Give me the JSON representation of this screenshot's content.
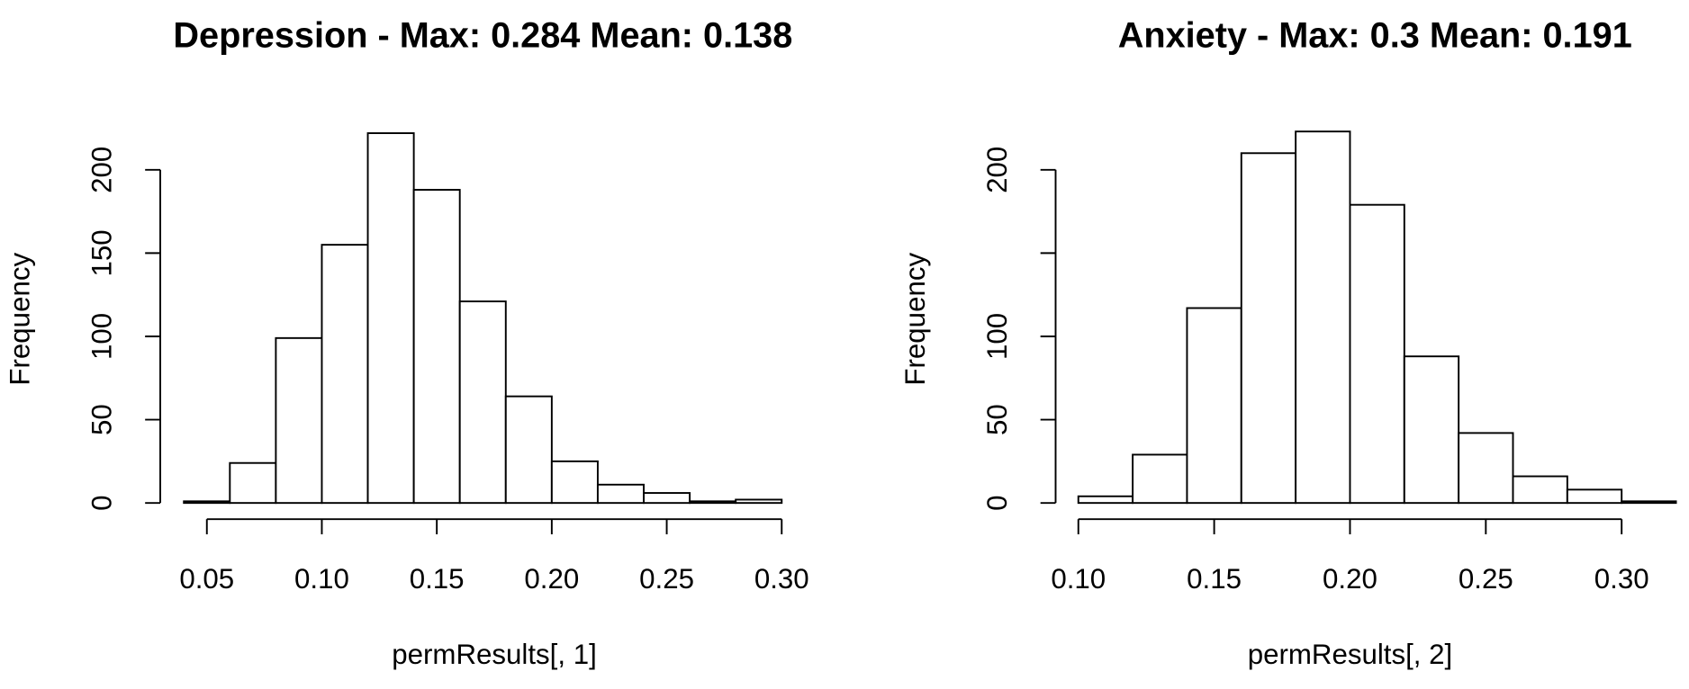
{
  "chart_data": [
    {
      "type": "histogram",
      "title": "Depression - Max: 0.284 Mean: 0.138",
      "xlabel": "permResults[, 1]",
      "ylabel": "Frequency",
      "bins": [
        0.04,
        0.06,
        0.08,
        0.1,
        0.12,
        0.14,
        0.16,
        0.18,
        0.2,
        0.22,
        0.24,
        0.26,
        0.28,
        0.3
      ],
      "values": [
        1,
        24,
        99,
        155,
        222,
        188,
        121,
        64,
        25,
        11,
        6,
        1,
        2
      ],
      "xlim": [
        0.04,
        0.3
      ],
      "xticks": [
        {
          "value": 0.05,
          "label": "0.05"
        },
        {
          "value": 0.1,
          "label": "0.10"
        },
        {
          "value": 0.15,
          "label": "0.15"
        },
        {
          "value": 0.2,
          "label": "0.20"
        },
        {
          "value": 0.25,
          "label": "0.25"
        },
        {
          "value": 0.3,
          "label": "0.30"
        }
      ],
      "ylim": [
        0,
        225
      ],
      "yticks": [
        0,
        50,
        100,
        150,
        200
      ],
      "color": "#ffffff"
    },
    {
      "type": "histogram",
      "title": "Anxiety - Max: 0.3 Mean: 0.191",
      "xlabel": "permResults[, 2]",
      "ylabel": "Frequency",
      "bins": [
        0.1,
        0.12,
        0.14,
        0.16,
        0.18,
        0.2,
        0.22,
        0.24,
        0.26,
        0.28,
        0.3,
        0.32
      ],
      "values": [
        4,
        29,
        117,
        210,
        223,
        179,
        88,
        42,
        16,
        8,
        1
      ],
      "xlim": [
        0.1,
        0.32
      ],
      "xticks": [
        {
          "value": 0.1,
          "label": "0.10"
        },
        {
          "value": 0.15,
          "label": "0.15"
        },
        {
          "value": 0.2,
          "label": "0.20"
        },
        {
          "value": 0.25,
          "label": "0.25"
        },
        {
          "value": 0.3,
          "label": "0.30"
        }
      ],
      "ylim": [
        0,
        225
      ],
      "yticks": [
        0,
        50,
        100,
        200
      ],
      "yticks_unlabeled": [
        150
      ],
      "color": "#ffffff"
    }
  ]
}
